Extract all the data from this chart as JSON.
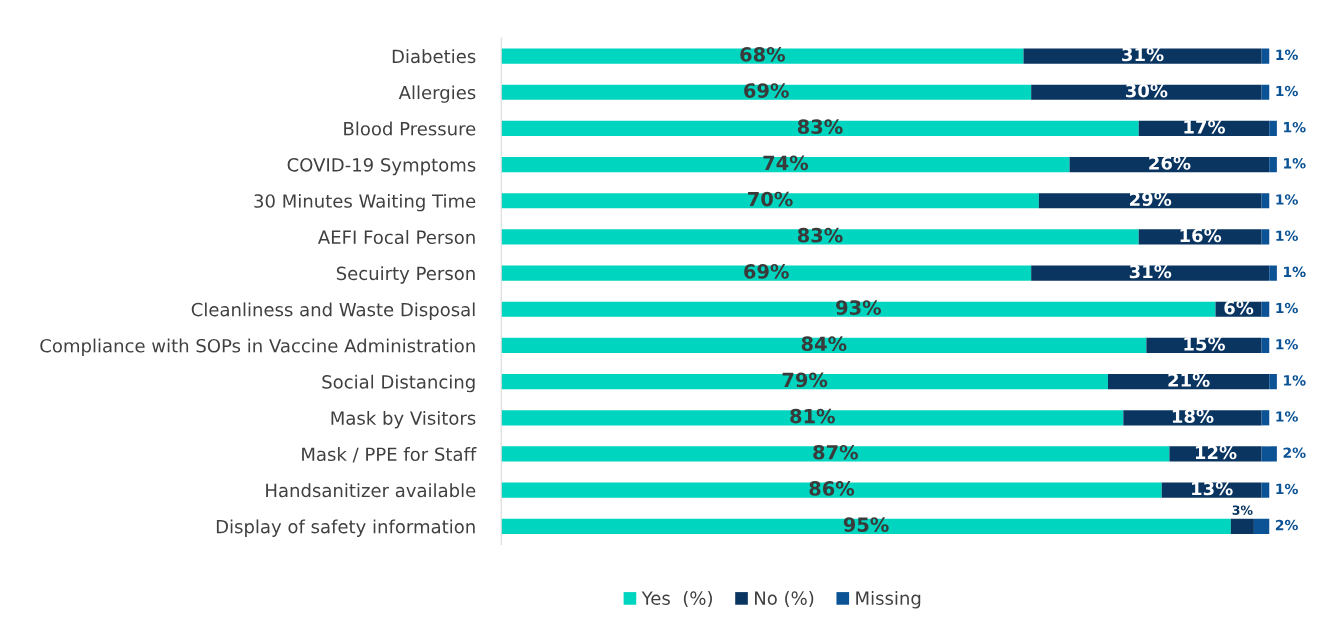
{
  "chart_data": {
    "type": "bar",
    "orientation": "horizontal",
    "stacked": true,
    "xlim": [
      0,
      101
    ],
    "tick_labels": "y",
    "grid": false,
    "legend": "bottom",
    "categories": [
      "Diabeties",
      "Allergies",
      "Blood Pressure",
      "COVID-19 Symptoms",
      "30 Minutes Waiting Time",
      "AEFI Focal Person",
      "Secuirty Person",
      "Cleanliness and Waste Disposal",
      "Compliance with SOPs in Vaccine Administration",
      "Social Distancing",
      "Mask by Visitors",
      "Mask / PPE for Staff",
      "Handsanitizer available",
      "Display of safety information"
    ],
    "series": [
      {
        "name": "Yes  (%)",
        "color": "#00d5c0",
        "values": [
          68,
          69,
          83,
          74,
          70,
          83,
          69,
          93,
          84,
          79,
          81,
          87,
          86,
          95
        ],
        "value_labels": [
          "68%",
          "69%",
          "83%",
          "74%",
          "70%",
          "83%",
          "69%",
          "93%",
          "84%",
          "79%",
          "81%",
          "87%",
          "86%",
          "95%"
        ]
      },
      {
        "name": "No (%)",
        "color": "#0a3561",
        "values": [
          31,
          30,
          17,
          26,
          29,
          16,
          31,
          6,
          15,
          21,
          18,
          12,
          13,
          3
        ],
        "value_labels": [
          "31%",
          "30%",
          "17%",
          "26%",
          "29%",
          "16%",
          "31%",
          "6%",
          "15%",
          "21%",
          "18%",
          "12%",
          "13%",
          "3%"
        ]
      },
      {
        "name": "Missing",
        "color": "#0b5394",
        "values": [
          1,
          1,
          1,
          1,
          1,
          1,
          1,
          1,
          1,
          1,
          1,
          2,
          1,
          2
        ],
        "value_labels": [
          "1%",
          "1%",
          "1%",
          "1%",
          "1%",
          "1%",
          "1%",
          "1%",
          "1%",
          "1%",
          "1%",
          "2%",
          "1%",
          "2%"
        ]
      }
    ]
  }
}
